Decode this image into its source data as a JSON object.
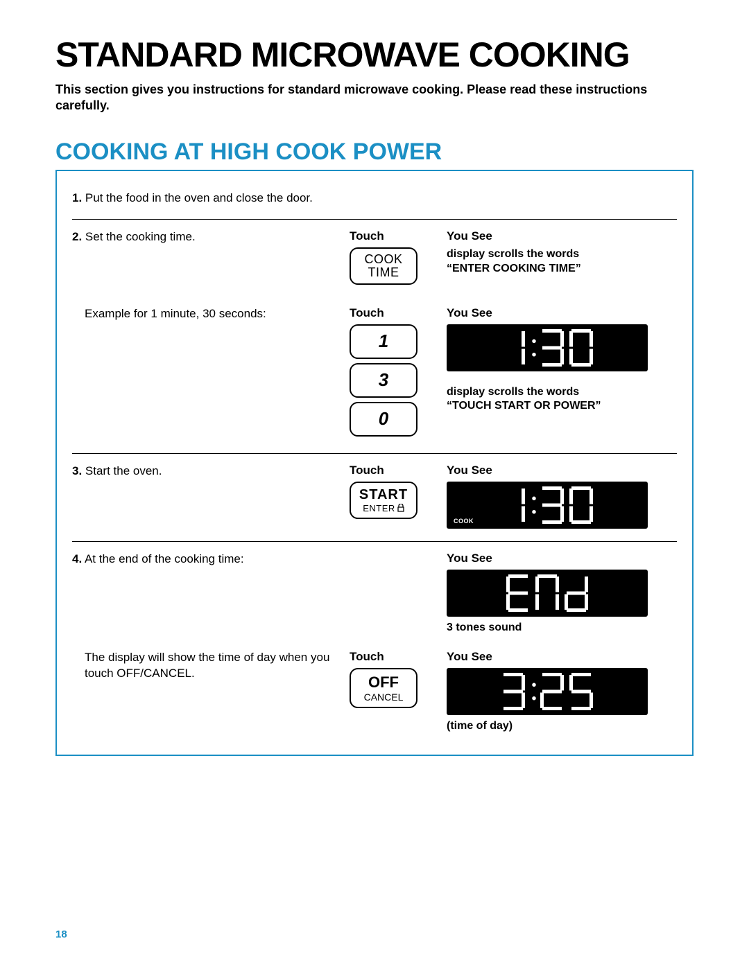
{
  "colors": {
    "accent_blue": "#1b8fc4",
    "text_black": "#000000",
    "display_bg": "#000000",
    "display_fg": "#ffffff",
    "page_bg": "#ffffff"
  },
  "page_number": "18",
  "main_title": "STANDARD MICROWAVE COOKING",
  "intro_text": "This section gives you instructions for standard microwave cooking. Please read these instructions carefully.",
  "section_title": "COOKING AT HIGH COOK POWER",
  "labels": {
    "touch": "Touch",
    "you_see": "You See"
  },
  "steps": {
    "s1": {
      "num": "1.",
      "text": " Put the food in the oven and close the door."
    },
    "s2": {
      "num": "2.",
      "text": " Set the cooking time.",
      "btn_cook_l1": "COOK",
      "btn_cook_l2": "TIME",
      "note_l1": "display scrolls the words",
      "note_l2": "“ENTER COOKING TIME”"
    },
    "s2b": {
      "text": "Example for 1 minute, 30 seconds:",
      "btn1": "1",
      "btn2": "3",
      "btn3": "0",
      "display_time": "1:30",
      "note_l1": "display scrolls the words",
      "note_l2": "“TOUCH START OR POWER”"
    },
    "s3": {
      "num": "3.",
      "text": " Start the oven.",
      "btn_l1": "START",
      "btn_l2": "ENTER",
      "display_time": "1:30",
      "cook_indicator": "COOK"
    },
    "s4": {
      "num": "4.",
      "text": " At the end of the cooking time:",
      "display_text": "END",
      "note": "3 tones sound"
    },
    "s4b": {
      "text": "The display will show the time of day when you touch OFF/CANCEL.",
      "btn_l1": "OFF",
      "btn_l2": "CANCEL",
      "display_time": "3:25",
      "note": "(time of day)"
    }
  },
  "seven_segment": {
    "stroke_width": 5,
    "digit_width": 34,
    "digit_height": 54,
    "char_gap": 8
  }
}
